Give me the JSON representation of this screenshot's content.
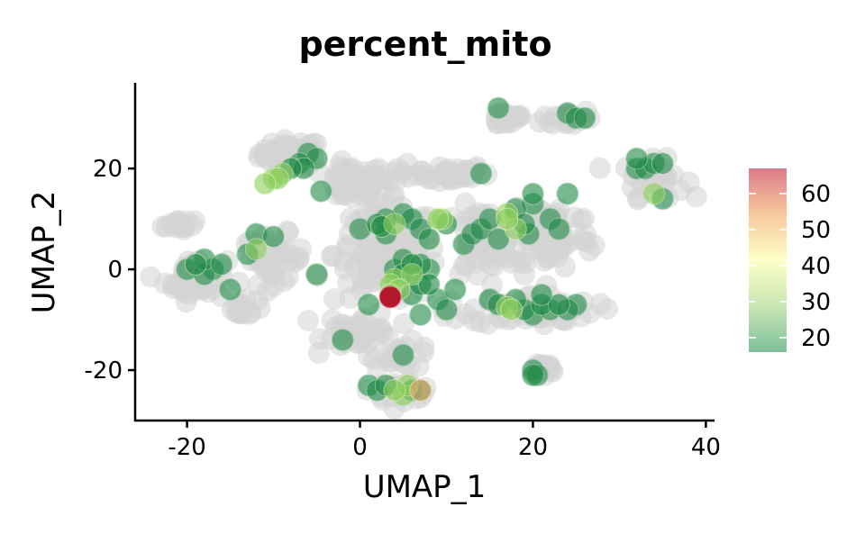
{
  "chart_data": {
    "type": "scatter",
    "title": "percent_mito",
    "xlabel": "UMAP_1",
    "ylabel": "UMAP_2",
    "xlim": [
      -26,
      41
    ],
    "ylim": [
      -30,
      37
    ],
    "xticks": [
      -20,
      0,
      20,
      40
    ],
    "xtick_labels": [
      "-20",
      "0",
      "20",
      "40"
    ],
    "yticks": [
      -20,
      0,
      20
    ],
    "ytick_labels": [
      "-20",
      "0",
      "20"
    ],
    "grid": false,
    "legend": {
      "placement": "right",
      "type": "colorbar",
      "min": 16,
      "max": 67,
      "ticks": [
        20,
        30,
        40,
        50,
        60
      ],
      "tick_labels": [
        "20",
        "30",
        "40",
        "50",
        "60"
      ],
      "colors": [
        "#7fbf9a",
        "#c8e6b4",
        "#ffffc8",
        "#f7c99c",
        "#dc7c8a"
      ]
    },
    "background_color": "#d3d3d3",
    "background_clusters": [
      {
        "x": -8,
        "y": 23,
        "sx": 3.0,
        "sy": 2.2,
        "n": 50
      },
      {
        "x": -1,
        "y": 17,
        "sx": 3.0,
        "sy": 3.0,
        "n": 45
      },
      {
        "x": 9,
        "y": 19,
        "sx": 5.0,
        "sy": 1.5,
        "n": 40
      },
      {
        "x": 17,
        "y": 30,
        "sx": 2.0,
        "sy": 1.5,
        "n": 20
      },
      {
        "x": 24,
        "y": 30,
        "sx": 2.5,
        "sy": 1.5,
        "n": 20
      },
      {
        "x": 34,
        "y": 18,
        "sx": 3.0,
        "sy": 3.0,
        "n": 30
      },
      {
        "x": -21,
        "y": 9,
        "sx": 1.5,
        "sy": 1.2,
        "n": 15
      },
      {
        "x": -19,
        "y": -2,
        "sx": 3.0,
        "sy": 3.5,
        "n": 40
      },
      {
        "x": -10,
        "y": 2,
        "sx": 3.0,
        "sy": 4.0,
        "n": 40
      },
      {
        "x": 3,
        "y": 3,
        "sx": 5.0,
        "sy": 8.0,
        "n": 140
      },
      {
        "x": 0,
        "y": -12,
        "sx": 3.5,
        "sy": 3.0,
        "n": 40
      },
      {
        "x": 5,
        "y": -17,
        "sx": 3.0,
        "sy": 2.0,
        "n": 20
      },
      {
        "x": 5,
        "y": -24,
        "sx": 3.0,
        "sy": 1.5,
        "n": 30
      },
      {
        "x": 14,
        "y": 5,
        "sx": 3.5,
        "sy": 6.0,
        "n": 60
      },
      {
        "x": 22,
        "y": 7,
        "sx": 4.0,
        "sy": 6.0,
        "n": 80
      },
      {
        "x": 20,
        "y": -8,
        "sx": 6.0,
        "sy": 2.5,
        "n": 60
      },
      {
        "x": 21,
        "y": -20,
        "sx": 1.5,
        "sy": 1.5,
        "n": 15
      },
      {
        "x": -14,
        "y": -8,
        "sx": 2.0,
        "sy": 1.5,
        "n": 15
      }
    ],
    "points": [
      {
        "x": -8,
        "y": 20,
        "v": 28
      },
      {
        "x": -10,
        "y": 18,
        "v": 32
      },
      {
        "x": -11,
        "y": 17,
        "v": 34
      },
      {
        "x": -9,
        "y": 19,
        "v": 30
      },
      {
        "x": -7,
        "y": 21,
        "v": 22
      },
      {
        "x": -6,
        "y": 23,
        "v": 18
      },
      {
        "x": -5,
        "y": 22,
        "v": 18
      },
      {
        "x": -9.5,
        "y": 18,
        "v": 33
      },
      {
        "x": -6.5,
        "y": 20,
        "v": 26
      },
      {
        "x": -4.5,
        "y": 15.5,
        "v": 22
      },
      {
        "x": -19,
        "y": 1,
        "v": 28
      },
      {
        "x": -20,
        "y": 0,
        "v": 18
      },
      {
        "x": -18,
        "y": 2,
        "v": 20
      },
      {
        "x": -17,
        "y": 0,
        "v": 18
      },
      {
        "x": -16,
        "y": 1,
        "v": 22
      },
      {
        "x": -18,
        "y": -1,
        "v": 19
      },
      {
        "x": -15,
        "y": -4,
        "v": 17
      },
      {
        "x": -12,
        "y": 4,
        "v": 30
      },
      {
        "x": -13,
        "y": 3,
        "v": 18
      },
      {
        "x": -10,
        "y": 6.5,
        "v": 25
      },
      {
        "x": -12,
        "y": 7,
        "v": 18
      },
      {
        "x": -5,
        "y": -1,
        "v": 17
      },
      {
        "x": 0,
        "y": 8,
        "v": 18
      },
      {
        "x": 2,
        "y": 9,
        "v": 26
      },
      {
        "x": 3,
        "y": 10,
        "v": 20
      },
      {
        "x": 5,
        "y": 11,
        "v": 18
      },
      {
        "x": 3,
        "y": 7,
        "v": 22
      },
      {
        "x": 6,
        "y": 10,
        "v": 18
      },
      {
        "x": 4,
        "y": 9,
        "v": 30
      },
      {
        "x": 2.5,
        "y": 8.5,
        "v": 28
      },
      {
        "x": 7,
        "y": 8,
        "v": 20
      },
      {
        "x": 9,
        "y": 10,
        "v": 36
      },
      {
        "x": 10,
        "y": 9,
        "v": 28
      },
      {
        "x": 8,
        "y": 6,
        "v": 22
      },
      {
        "x": 9.5,
        "y": 10,
        "v": 34
      },
      {
        "x": 12,
        "y": 5,
        "v": 18
      },
      {
        "x": 13,
        "y": 7,
        "v": 18
      },
      {
        "x": 4,
        "y": 0,
        "v": 22
      },
      {
        "x": 5,
        "y": -1,
        "v": 26
      },
      {
        "x": 6,
        "y": 1,
        "v": 28
      },
      {
        "x": 3.5,
        "y": -3,
        "v": 32
      },
      {
        "x": 4,
        "y": -2,
        "v": 30
      },
      {
        "x": 7,
        "y": -3,
        "v": 22
      },
      {
        "x": 5,
        "y": 2,
        "v": 24
      },
      {
        "x": 8,
        "y": 0,
        "v": 20
      },
      {
        "x": 6,
        "y": -5,
        "v": 20
      },
      {
        "x": 9,
        "y": -6,
        "v": 18
      },
      {
        "x": 10,
        "y": -8,
        "v": 18
      },
      {
        "x": 7,
        "y": -9,
        "v": 18
      },
      {
        "x": 8,
        "y": -3,
        "v": 26
      },
      {
        "x": 4.5,
        "y": -4,
        "v": 36
      },
      {
        "x": 3.5,
        "y": -5,
        "v": 38
      },
      {
        "x": 3.5,
        "y": -5.5,
        "v": 66
      },
      {
        "x": 11,
        "y": -4,
        "v": 18
      },
      {
        "x": 6,
        "y": -1,
        "v": 30
      },
      {
        "x": 7,
        "y": 1,
        "v": 24
      },
      {
        "x": 15,
        "y": -6,
        "v": 18
      },
      {
        "x": 16,
        "y": -7,
        "v": 22
      },
      {
        "x": 17,
        "y": -7.5,
        "v": 37
      },
      {
        "x": 18,
        "y": -6,
        "v": 24
      },
      {
        "x": 19,
        "y": -8,
        "v": 20
      },
      {
        "x": 20,
        "y": -9,
        "v": 18
      },
      {
        "x": 21,
        "y": -7,
        "v": 22
      },
      {
        "x": 22,
        "y": -8,
        "v": 20
      },
      {
        "x": 23,
        "y": -7,
        "v": 24
      },
      {
        "x": 24,
        "y": -8,
        "v": 20
      },
      {
        "x": 25,
        "y": -7,
        "v": 18
      },
      {
        "x": 21,
        "y": -5,
        "v": 24
      },
      {
        "x": 17.5,
        "y": -8,
        "v": 38
      },
      {
        "x": 17,
        "y": 11,
        "v": 34
      },
      {
        "x": 18,
        "y": 12,
        "v": 20
      },
      {
        "x": 19,
        "y": 9,
        "v": 24
      },
      {
        "x": 20,
        "y": 13,
        "v": 18
      },
      {
        "x": 18,
        "y": 8,
        "v": 36
      },
      {
        "x": 15,
        "y": 10,
        "v": 22
      },
      {
        "x": 14,
        "y": 8,
        "v": 18
      },
      {
        "x": 16,
        "y": 6,
        "v": 20
      },
      {
        "x": 20,
        "y": 15,
        "v": 22
      },
      {
        "x": 22,
        "y": 10,
        "v": 18
      },
      {
        "x": 23,
        "y": 8,
        "v": 18
      },
      {
        "x": 24,
        "y": 15,
        "v": 17
      },
      {
        "x": 19.5,
        "y": 7,
        "v": 20
      },
      {
        "x": 17,
        "y": 10,
        "v": 36
      },
      {
        "x": 16,
        "y": 32,
        "v": 22
      },
      {
        "x": 24,
        "y": 31,
        "v": 18
      },
      {
        "x": 25,
        "y": 30,
        "v": 20
      },
      {
        "x": 26,
        "y": 30,
        "v": 22
      },
      {
        "x": 14,
        "y": 19,
        "v": 18
      },
      {
        "x": 32,
        "y": 22,
        "v": 22
      },
      {
        "x": 33,
        "y": 20,
        "v": 20
      },
      {
        "x": 32,
        "y": 20,
        "v": 18
      },
      {
        "x": 34,
        "y": 21,
        "v": 20
      },
      {
        "x": 35,
        "y": 21,
        "v": 26
      },
      {
        "x": 34,
        "y": 15,
        "v": 30
      },
      {
        "x": 35,
        "y": 14,
        "v": 17
      },
      {
        "x": 5,
        "y": -17,
        "v": 18
      },
      {
        "x": -2,
        "y": -14,
        "v": 17
      },
      {
        "x": 1,
        "y": -7,
        "v": 18
      },
      {
        "x": 1,
        "y": -23,
        "v": 18
      },
      {
        "x": 2,
        "y": -24,
        "v": 22
      },
      {
        "x": 4,
        "y": -24,
        "v": 36
      },
      {
        "x": 5,
        "y": -25,
        "v": 30
      },
      {
        "x": 6,
        "y": -24,
        "v": 26
      },
      {
        "x": 7,
        "y": -24,
        "v": 28
      },
      {
        "x": 7,
        "y": -24,
        "v": 48
      },
      {
        "x": 3,
        "y": -23,
        "v": 24
      },
      {
        "x": 5.5,
        "y": -23,
        "v": 34
      },
      {
        "x": 20,
        "y": -21,
        "v": 17
      },
      {
        "x": 20,
        "y": -20,
        "v": 16
      },
      {
        "x": 20.5,
        "y": -21,
        "v": 16
      }
    ]
  }
}
